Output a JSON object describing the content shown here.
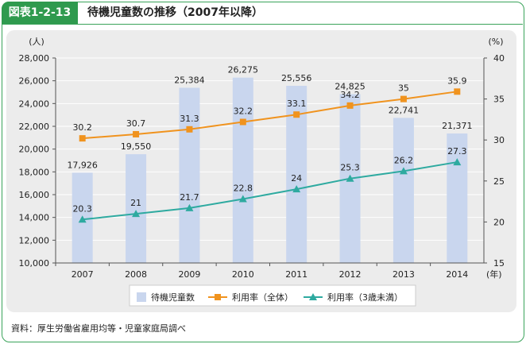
{
  "header": {
    "figure_label": "図表1-2-13",
    "title": "待機児童数の推移（2007年以降）"
  },
  "source": "資料：厚生労働省雇用均等・児童家庭局調べ",
  "colors": {
    "bar": "#c9d6ee",
    "line_overall": "#f0931e",
    "line_under3": "#2eaaa0",
    "axis": "#555555",
    "grid": "#ffffff"
  },
  "chart_data": {
    "type": "bar",
    "categories": [
      "2007",
      "2008",
      "2009",
      "2010",
      "2011",
      "2012",
      "2013",
      "2014"
    ],
    "x_unit": "(年)",
    "left_axis": {
      "unit": "(人)",
      "ylim": [
        10000,
        28000
      ],
      "ticks": [
        "10,000",
        "12,000",
        "14,000",
        "16,000",
        "18,000",
        "20,000",
        "22,000",
        "24,000",
        "26,000",
        "28,000"
      ]
    },
    "right_axis": {
      "unit": "(%)",
      "ylim": [
        15,
        40
      ],
      "ticks": [
        "15",
        "20",
        "25",
        "30",
        "35",
        "40"
      ]
    },
    "series": [
      {
        "name": "待機児童数",
        "kind": "bar",
        "axis": "left",
        "values": [
          17926,
          19550,
          25384,
          26275,
          25556,
          24825,
          22741,
          21371
        ],
        "labels": [
          "17,926",
          "19,550",
          "25,384",
          "26,275",
          "25,556",
          "24,825",
          "22,741",
          "21,371"
        ]
      },
      {
        "name": "利用率（全体）",
        "kind": "line",
        "axis": "right",
        "marker": "square",
        "values": [
          30.2,
          30.7,
          31.3,
          32.2,
          33.1,
          34.2,
          35,
          35.9
        ],
        "labels": [
          "30.2",
          "30.7",
          "31.3",
          "32.2",
          "33.1",
          "34.2",
          "35",
          "35.9"
        ]
      },
      {
        "name": "利用率（3歳未満）",
        "kind": "line",
        "axis": "right",
        "marker": "triangle",
        "values": [
          20.3,
          21,
          21.7,
          22.8,
          24,
          25.3,
          26.2,
          27.3
        ],
        "labels": [
          "20.3",
          "21",
          "21.7",
          "22.8",
          "24",
          "25.3",
          "26.2",
          "27.3"
        ]
      }
    ],
    "grid": true,
    "legend": "bottom"
  }
}
